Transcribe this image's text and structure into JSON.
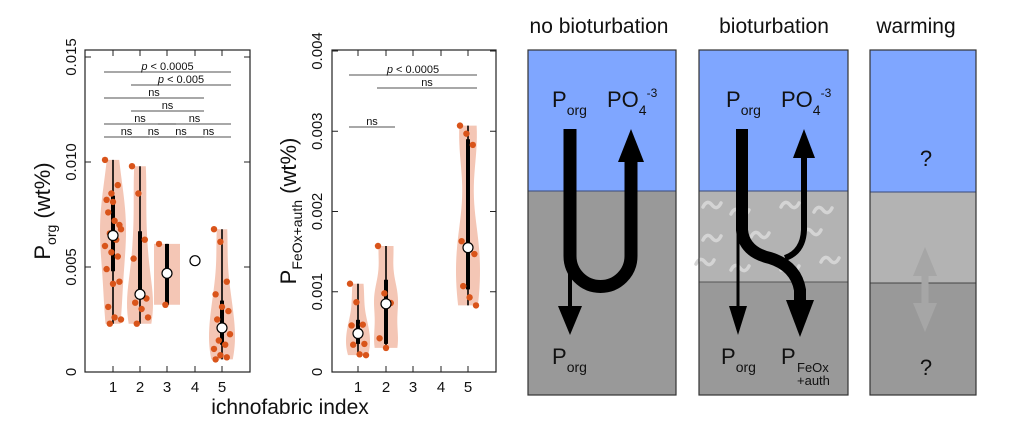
{
  "chart_data": [
    {
      "type": "violin",
      "id": "porg",
      "ylabel_main": "P",
      "ylabel_sub": "org",
      "ylabel_unit": " (wt%)",
      "ylim": [
        0,
        0.015
      ],
      "yticks": [
        0,
        0.005,
        0.01,
        0.015
      ],
      "ytick_labels": [
        "0",
        "0.005",
        "0.010",
        "0.015"
      ],
      "categories": [
        "1",
        "2",
        "3",
        "4",
        "5"
      ],
      "grid": false,
      "groups": [
        {
          "x": 1,
          "median": 0.0065,
          "q1": 0.0048,
          "q3": 0.0084,
          "min": 0.0023,
          "max": 0.0101,
          "points": [
            0.0101,
            0.0085,
            0.0089,
            0.0082,
            0.0081,
            0.007,
            0.0076,
            0.0072,
            0.0068,
            0.0066,
            0.0063,
            0.006,
            0.0057,
            0.0055,
            0.0049,
            0.0042,
            0.0043,
            0.0031,
            0.0026,
            0.0025,
            0.0023
          ]
        },
        {
          "x": 2,
          "median": 0.0037,
          "q1": 0.0035,
          "q3": 0.0067,
          "min": 0.0023,
          "max": 0.0098,
          "points": [
            0.0098,
            0.0085,
            0.0063,
            0.0054,
            0.0037,
            0.0035,
            0.0033,
            0.003,
            0.0026,
            0.0023
          ]
        },
        {
          "x": 3,
          "median": 0.0047,
          "q1": 0.0032,
          "q3": 0.0061,
          "min": 0.0032,
          "max": 0.0061,
          "points": [
            0.0061,
            0.0032
          ]
        },
        {
          "x": 4,
          "median": 0.0053,
          "q1": null,
          "q3": null,
          "min": null,
          "max": null,
          "points": []
        },
        {
          "x": 5,
          "median": 0.0021,
          "q1": 0.0013,
          "q3": 0.0034,
          "min": 0.0006,
          "max": 0.0068,
          "points": [
            0.0068,
            0.0062,
            0.0043,
            0.0037,
            0.0031,
            0.0029,
            0.0025,
            0.0022,
            0.0018,
            0.0015,
            0.0013,
            0.0011,
            0.0008,
            0.0007,
            0.0006
          ]
        }
      ],
      "annotations": [
        {
          "from": 1,
          "to": 5,
          "label_pre": "p",
          "label": " < 0.0005",
          "level": 1
        },
        {
          "from": 2,
          "to": 5,
          "label_pre": "p",
          "label": " < 0.005",
          "level": 2
        },
        {
          "from": 1,
          "to": 4,
          "label_pre": "",
          "label": "ns",
          "level": 3
        },
        {
          "from": 2,
          "to": 4,
          "label_pre": "",
          "label": "ns",
          "level": 4
        },
        {
          "from": 1,
          "to": 3,
          "label_pre": "",
          "label": "ns",
          "level": 5
        },
        {
          "from": 3,
          "to": 5,
          "label_pre": "",
          "label": "ns",
          "level": 5
        },
        {
          "from": 1,
          "to": 2,
          "label_pre": "",
          "label": "ns",
          "level": 6
        },
        {
          "from": 2,
          "to": 3,
          "label_pre": "",
          "label": "ns",
          "level": 6
        },
        {
          "from": 3,
          "to": 4,
          "label_pre": "",
          "label": "ns",
          "level": 6
        },
        {
          "from": 4,
          "to": 5,
          "label_pre": "",
          "label": "ns",
          "level": 6
        }
      ]
    },
    {
      "type": "violin",
      "id": "pfeox",
      "ylabel_main": "P",
      "ylabel_sub": "FeOx+auth",
      "ylabel_unit": " (wt%)",
      "ylim": [
        0,
        0.004
      ],
      "yticks": [
        0,
        0.001,
        0.002,
        0.003,
        0.004
      ],
      "ytick_labels": [
        "0",
        "0.001",
        "0.002",
        "0.003",
        "0.004"
      ],
      "categories": [
        "1",
        "2",
        "3",
        "4",
        "5"
      ],
      "grid": false,
      "groups": [
        {
          "x": 1,
          "median": 0.00048,
          "q1": 0.00035,
          "q3": 0.00065,
          "min": 0.00022,
          "max": 0.0011,
          "points": [
            0.0011,
            0.00087,
            0.00059,
            0.00058,
            0.00048,
            0.00035,
            0.00034,
            0.00022,
            0.00021
          ]
        },
        {
          "x": 2,
          "median": 0.00085,
          "q1": 0.00035,
          "q3": 0.00115,
          "min": 0.0003,
          "max": 0.00157,
          "points": [
            0.00157,
            0.00098,
            0.00086,
            0.00042,
            0.0003
          ]
        },
        {
          "x": 3,
          "points": []
        },
        {
          "x": 4,
          "points": []
        },
        {
          "x": 5,
          "median": 0.00155,
          "q1": 0.00103,
          "q3": 0.0029,
          "min": 0.00083,
          "max": 0.00307,
          "points": [
            0.00307,
            0.00297,
            0.00283,
            0.00163,
            0.00155,
            0.00147,
            0.00107,
            0.00093,
            0.00083
          ]
        }
      ],
      "annotations": [
        {
          "from": 1,
          "to": 5,
          "label_pre": "p",
          "label": " < 0.0005",
          "level": 1
        },
        {
          "from": 2,
          "to": 5,
          "label_pre": "",
          "label": "ns",
          "level": 2
        },
        {
          "from": 1,
          "to": 2,
          "label_pre": "",
          "label": "ns",
          "level": 5
        }
      ]
    }
  ],
  "shared_xlabel": "ichnofabric index",
  "colors": {
    "violin_fill": "#f4c6b5",
    "point": "#d9541a",
    "water": "#7fa6ff",
    "sediment_dark": "#999999",
    "sediment_light": "#b3b3b3",
    "bracket": "#8c8c8c",
    "warming_arrow": "#a6a6a6"
  },
  "schematic": {
    "panels": [
      {
        "title": "no bioturbation",
        "labels": {
          "porg_top_main": "P",
          "porg_top_sub": "org",
          "po4_main": "PO",
          "po4_sub": "4",
          "po4_sup": "-3",
          "porg_bottom_main": "P",
          "porg_bottom_sub": "org"
        }
      },
      {
        "title": "bioturbation",
        "labels": {
          "porg_top_main": "P",
          "porg_top_sub": "org",
          "po4_main": "PO",
          "po4_sub": "4",
          "po4_sup": "-3",
          "porg_bottom_main": "P",
          "porg_bottom_sub": "org",
          "pfeox_main": "P",
          "pfeox_sub1": "FeOx",
          "pfeox_sub2": "+auth"
        }
      },
      {
        "title": "warming",
        "labels": {
          "q_top": "?",
          "q_bottom": "?"
        }
      }
    ]
  }
}
